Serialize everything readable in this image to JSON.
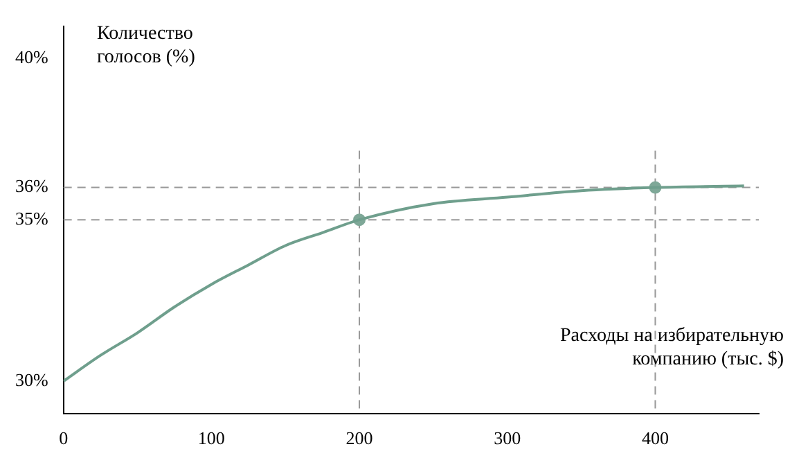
{
  "chart_data": {
    "type": "line",
    "xlabel": "Расходы на избирательную компанию (тыс. $)",
    "ylabel": "Количество голосов (%)",
    "xlim": [
      0,
      470
    ],
    "ylim": [
      29,
      41
    ],
    "xticks": [
      0,
      100,
      200,
      300,
      400
    ],
    "yticks": [
      {
        "value": 30,
        "label": "30%"
      },
      {
        "value": 35,
        "label": "35%"
      },
      {
        "value": 36,
        "label": "36%"
      },
      {
        "value": 40,
        "label": "40%"
      }
    ],
    "grid": false,
    "legend": false,
    "marker": "none",
    "ref_lines": [
      {
        "axis": "y",
        "value": 35,
        "color": "#999999",
        "line_style": "dashed"
      },
      {
        "axis": "y",
        "value": 36,
        "color": "#999999",
        "line_style": "dashed"
      },
      {
        "axis": "x",
        "value": 200,
        "color": "#999999",
        "line_style": "dashed"
      },
      {
        "axis": "x",
        "value": 400,
        "color": "#999999",
        "line_style": "dashed"
      }
    ],
    "series": [
      {
        "type": "line",
        "color": "#6f9f8d",
        "x": [
          0,
          25,
          50,
          75,
          100,
          125,
          150,
          175,
          200,
          250,
          300,
          350,
          400,
          460
        ],
        "values": [
          30,
          30.8,
          31.5,
          32.3,
          33,
          33.6,
          34.2,
          34.6,
          35,
          35.5,
          35.7,
          35.9,
          36,
          36.05
        ]
      },
      {
        "type": "scatter",
        "marker": "circle",
        "color": "#7fa898",
        "x": [
          200,
          400
        ],
        "values": [
          35,
          36
        ]
      }
    ]
  }
}
